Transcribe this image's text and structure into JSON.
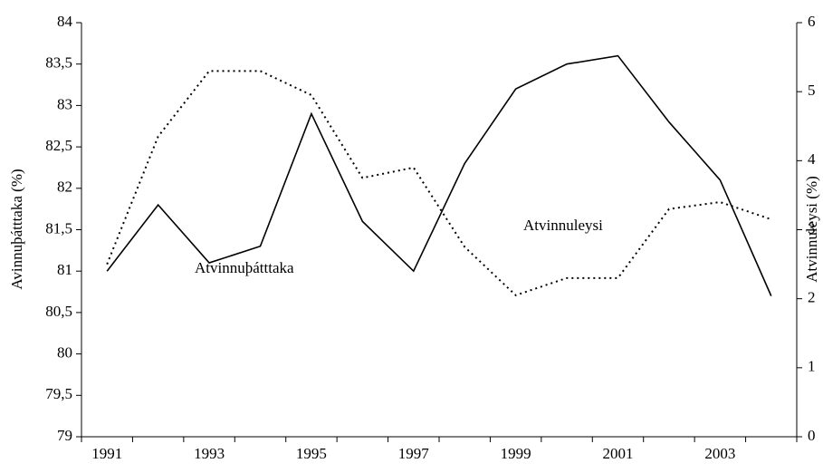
{
  "chart_data": {
    "type": "line",
    "y_label": "Avinnuþátttaka (%)",
    "y2_label": "Atvinnuleysi (%)",
    "categories": [
      "1991",
      null,
      "1993",
      null,
      "1995",
      null,
      "1997",
      null,
      "1999",
      null,
      "2001",
      null,
      "2003",
      null
    ],
    "series": [
      {
        "name": "Atvinnuþátttaka",
        "color": "#000000",
        "style": "solid",
        "axis": "y",
        "values": [
          81.0,
          81.8,
          81.1,
          81.3,
          82.9,
          81.6,
          81.0,
          82.3,
          83.2,
          83.5,
          83.6,
          82.8,
          82.1,
          80.7
        ]
      },
      {
        "name": "Atvinnuleysi",
        "color": "#000000",
        "style": "dotted",
        "axis": "y2",
        "values": [
          2.5,
          4.35,
          5.3,
          5.3,
          4.95,
          3.75,
          3.9,
          2.75,
          2.05,
          2.3,
          2.3,
          3.3,
          3.4,
          3.15
        ]
      }
    ],
    "ylim": [
      79,
      84
    ],
    "yticks": [
      79,
      {
        "value": 79.5,
        "label": "79,5"
      },
      80,
      {
        "value": 80.5,
        "label": "80,5"
      },
      81,
      {
        "value": 81.5,
        "label": "81,5"
      },
      82,
      {
        "value": 82.5,
        "label": "82,5"
      },
      83,
      {
        "value": 83.5,
        "label": "83,5"
      },
      84
    ],
    "y2lim": [
      0,
      6
    ],
    "y2ticks": [
      0,
      1,
      2,
      3,
      4,
      5,
      6
    ],
    "grid": false
  }
}
